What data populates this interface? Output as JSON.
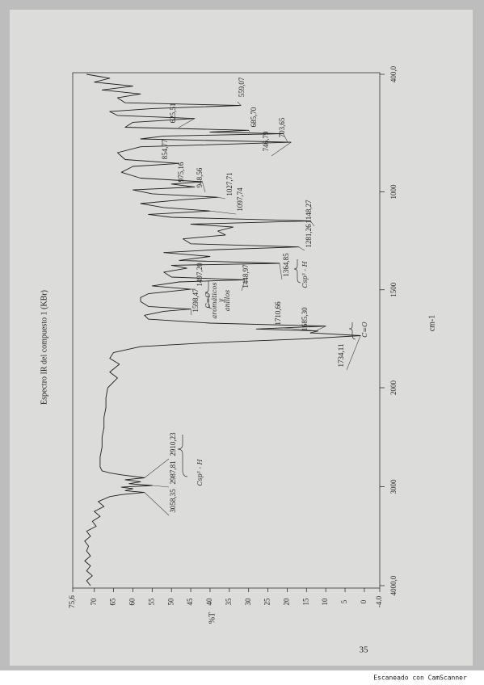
{
  "chart_data": {
    "type": "line",
    "title": "Espectro IR del compuesto 1 (KBr)",
    "x_label": "cm-1",
    "y_label": "%T",
    "color": "#1e1e1e",
    "x": [
      4000,
      3950,
      3900,
      3850,
      3800,
      3750,
      3700,
      3650,
      3600,
      3550,
      3500,
      3450,
      3400,
      3350,
      3300,
      3250,
      3200,
      3150,
      3100,
      3080,
      3058.35,
      3040,
      3020,
      3005,
      2987.81,
      2970,
      2950,
      2930,
      2910.23,
      2880,
      2860,
      2840,
      2800,
      2700,
      2600,
      2500,
      2400,
      2300,
      2200,
      2100,
      2000,
      1950,
      1920,
      1880,
      1850,
      1820,
      1790,
      1770,
      1750,
      1734.11,
      1720,
      1710.66,
      1700,
      1685.3,
      1670,
      1650,
      1630,
      1610,
      1598.47,
      1585,
      1560,
      1540,
      1520,
      1497.2,
      1480,
      1460,
      1448.97,
      1435,
      1410,
      1390,
      1375,
      1364.85,
      1350,
      1330,
      1310,
      1295,
      1281.26,
      1265,
      1240,
      1220,
      1200,
      1180,
      1165,
      1148.27,
      1130,
      1115,
      1097.74,
      1080,
      1060,
      1040,
      1027.71,
      1010,
      990,
      975.16,
      960,
      948.56,
      930,
      900,
      870,
      854.77,
      835,
      800,
      770,
      746.79,
      730,
      715,
      703.65,
      695,
      685.7,
      670,
      645,
      625.51,
      610,
      590,
      575,
      559.07,
      545,
      520,
      500,
      480,
      460,
      440,
      420,
      400
    ],
    "values": [
      71,
      72,
      70.5,
      72,
      71,
      72.5,
      71,
      72,
      71.5,
      72.5,
      71,
      72,
      69.5,
      70.5,
      68.5,
      70,
      67.5,
      69,
      66,
      63,
      57,
      62,
      60,
      63,
      55,
      61,
      58,
      62,
      57,
      63,
      66,
      68,
      68.5,
      68.5,
      68,
      68,
      67.5,
      67.5,
      67,
      67,
      66.5,
      64,
      66,
      63.5,
      66,
      65,
      58,
      40,
      15,
      1,
      14,
      12,
      28,
      10,
      40,
      56,
      57,
      52,
      45,
      56,
      58,
      58,
      56,
      45,
      55,
      48,
      31,
      50,
      52,
      46,
      50,
      22,
      48,
      40,
      52,
      38,
      17,
      45,
      47,
      36,
      38,
      34,
      45,
      14,
      50,
      56,
      40,
      52,
      58,
      47,
      38,
      55,
      60,
      44,
      50,
      42,
      58,
      63,
      60,
      48,
      62,
      64,
      58,
      19,
      58,
      52,
      21,
      40,
      30,
      62,
      60,
      44,
      64,
      66,
      55,
      32,
      62,
      64,
      58,
      68,
      60,
      70,
      66,
      72
    ],
    "xlim": [
      4000,
      400
    ],
    "xticks": [
      {
        "value": 4000,
        "label": "4000,0"
      },
      3000,
      2000,
      1500,
      1000,
      {
        "value": 400,
        "label": "400,0"
      }
    ],
    "ylim": [
      -4.0,
      75.6
    ],
    "yticks": [
      {
        "value": 75.6,
        "label": "75,6"
      },
      70,
      65,
      60,
      55,
      50,
      45,
      40,
      35,
      30,
      25,
      20,
      15,
      10,
      5,
      0,
      {
        "value": -4.0,
        "label": "-4.0"
      }
    ],
    "annotations": [
      {
        "label": "3058,35",
        "value": 3058.35
      },
      {
        "label": "2987,81",
        "value": 2987.81
      },
      {
        "label": "2910,23",
        "value": 2910.23
      },
      {
        "label": "1734,11",
        "value": 1734.11
      },
      {
        "label": "1685,30",
        "value": 1685.3
      },
      {
        "label": "1710,66",
        "value": 1710.66
      },
      {
        "label": "1598,47",
        "value": 1598.47
      },
      {
        "label": "1497,20",
        "value": 1497.2
      },
      {
        "label": "1448,97",
        "value": 1448.97
      },
      {
        "label": "1364,85",
        "value": 1364.85
      },
      {
        "label": "1281,26",
        "value": 1281.26
      },
      {
        "label": "1148,27",
        "value": 1148.27
      },
      {
        "label": "1097,74",
        "value": 1097.74
      },
      {
        "label": "1027,71",
        "value": 1027.71
      },
      {
        "label": "975,16",
        "value": 975.16
      },
      {
        "label": "948,56",
        "value": 948.56
      },
      {
        "label": "854,77",
        "value": 854.77
      },
      {
        "label": "746,79",
        "value": 746.79
      },
      {
        "label": "703,65",
        "value": 703.65
      },
      {
        "label": "685,70",
        "value": 685.7
      },
      {
        "label": "625,51",
        "value": 625.51
      },
      {
        "label": "559,07",
        "value": 559.07
      }
    ],
    "notes": [
      "Csp³ - H",
      "C=O",
      "C=C",
      "aromáticos",
      "y",
      "anillos",
      "Csp³ - H"
    ]
  },
  "page_number": "35",
  "footer": "Escaneado con CamScanner"
}
